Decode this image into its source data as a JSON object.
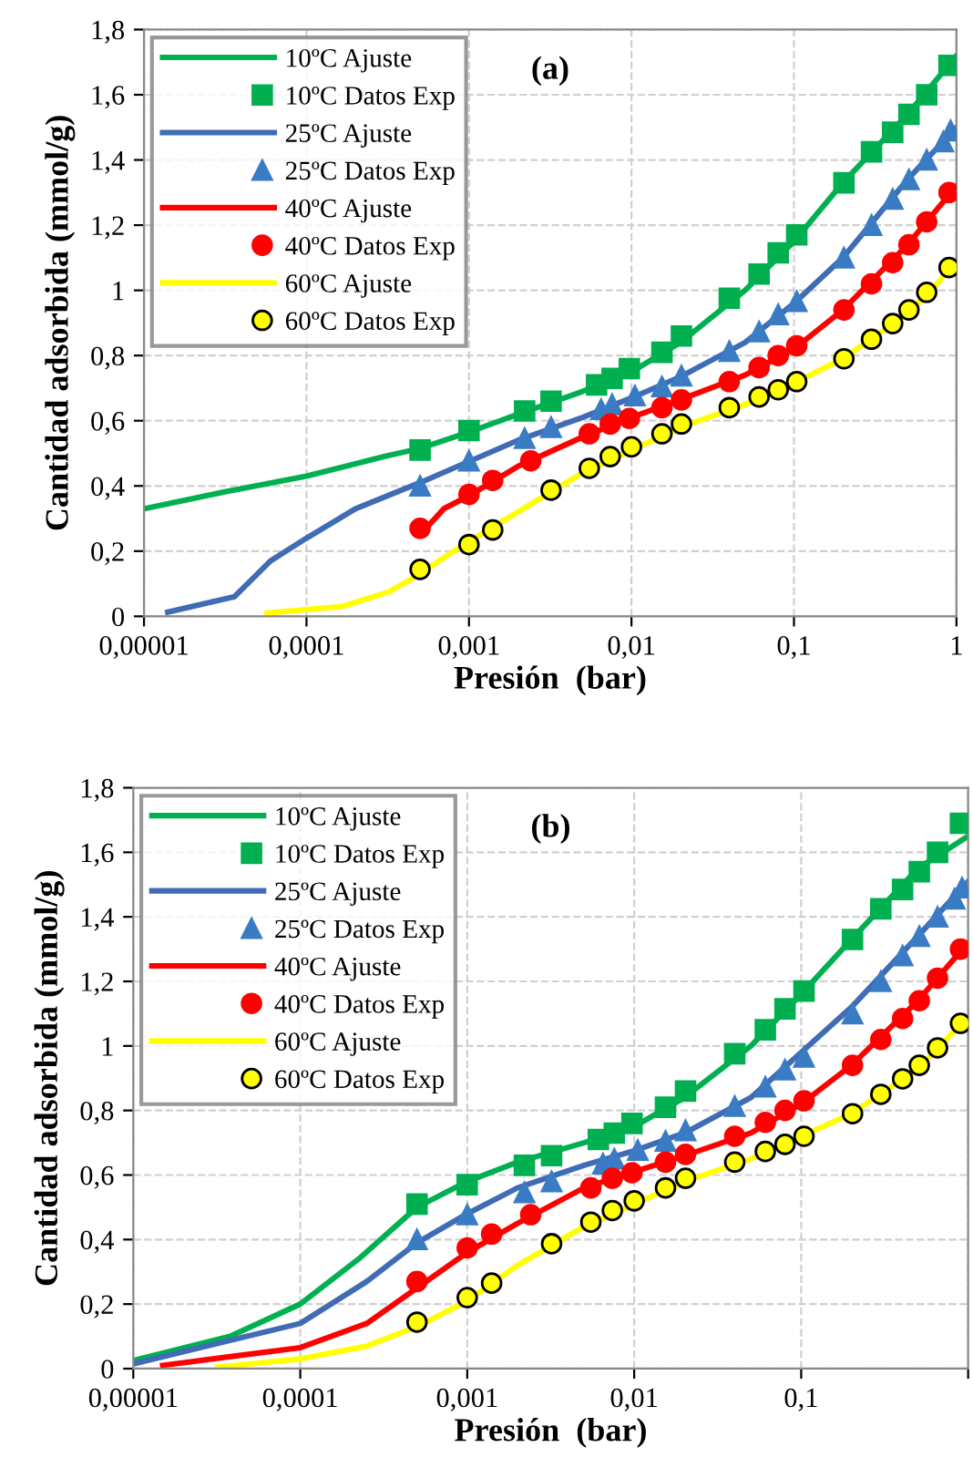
{
  "chart_data": [
    {
      "type": "line",
      "annotations": [
        "(a)"
      ],
      "xlabel": "Presión  (bar)",
      "ylabel": "Cantidad adsorbida (mmol/g)",
      "log": "x",
      "grid": true,
      "legend": "top left",
      "xlim": [
        1e-05,
        1
      ],
      "xticks": [
        {
          "value": 1e-05,
          "label": "0,00001"
        },
        {
          "value": 0.0001,
          "label": "0,0001"
        },
        {
          "value": 0.001,
          "label": "0,001"
        },
        {
          "value": 0.01,
          "label": "0,01"
        },
        {
          "value": 0.1,
          "label": "0,1"
        },
        1
      ],
      "ylim": [
        0,
        1.8
      ],
      "yticks": [
        0,
        {
          "value": 0.2,
          "label": "0,2"
        },
        {
          "value": 0.4,
          "label": "0,4"
        },
        {
          "value": 0.6,
          "label": "0,6"
        },
        {
          "value": 0.8,
          "label": "0,8"
        },
        1,
        {
          "value": 1.2,
          "label": "1,2"
        },
        {
          "value": 1.4,
          "label": "1,4"
        },
        {
          "value": 1.6,
          "label": "1,6"
        },
        {
          "value": 1.8,
          "label": "1,8"
        }
      ],
      "series": [
        {
          "name": "10ºC Ajuste",
          "type": "line",
          "color": "#00b050",
          "line_style": "solid",
          "x": [
            1e-05,
            3e-05,
            0.0001,
            0.0003,
            0.0005,
            0.001,
            0.002,
            0.005,
            0.01,
            0.02,
            0.05,
            0.1,
            0.2,
            0.5,
            1
          ],
          "values": [
            0.33,
            0.38,
            0.43,
            0.49,
            0.515,
            0.565,
            0.62,
            0.69,
            0.75,
            0.84,
            1.0,
            1.15,
            1.33,
            1.54,
            1.72
          ]
        },
        {
          "name": "10ºC Datos Exp",
          "type": "scatter",
          "color": "#00b050",
          "marker": "square",
          "x": [
            0.0005,
            0.001,
            0.0022,
            0.0032,
            0.0061,
            0.0076,
            0.0097,
            0.0154,
            0.0203,
            0.04,
            0.061,
            0.08,
            0.104,
            0.203,
            0.3,
            0.405,
            0.51,
            0.656,
            0.9
          ],
          "values": [
            0.51,
            0.57,
            0.63,
            0.66,
            0.71,
            0.73,
            0.76,
            0.81,
            0.86,
            0.976,
            1.05,
            1.115,
            1.17,
            1.33,
            1.425,
            1.485,
            1.54,
            1.6,
            1.69
          ]
        },
        {
          "name": "25ºC Ajuste",
          "type": "line",
          "color": "#3f6cb4",
          "line_style": "solid",
          "x": [
            1.4e-05,
            3.6e-05,
            6e-05,
            0.0001,
            0.0002,
            0.0005,
            0.001,
            0.002,
            0.005,
            0.01,
            0.02,
            0.05,
            0.1,
            0.2,
            0.5,
            1
          ],
          "values": [
            0.013,
            0.06,
            0.17,
            0.24,
            0.33,
            0.41,
            0.475,
            0.54,
            0.61,
            0.67,
            0.735,
            0.84,
            0.96,
            1.1,
            1.34,
            1.5
          ]
        },
        {
          "name": "25ºC Datos Exp",
          "type": "scatter",
          "color": "#3a7cc4",
          "marker": "triangle",
          "x": [
            0.0005,
            0.001,
            0.0022,
            0.0032,
            0.0065,
            0.0076,
            0.0105,
            0.0154,
            0.0203,
            0.04,
            0.061,
            0.08,
            0.104,
            0.203,
            0.3,
            0.405,
            0.51,
            0.656,
            0.83,
            0.92
          ],
          "values": [
            0.4,
            0.477,
            0.546,
            0.58,
            0.635,
            0.65,
            0.677,
            0.705,
            0.738,
            0.813,
            0.873,
            0.926,
            0.966,
            1.1,
            1.2,
            1.28,
            1.34,
            1.4,
            1.456,
            1.49
          ]
        },
        {
          "name": "40ºC Ajuste",
          "type": "line",
          "color": "#ff0000",
          "line_style": "solid",
          "x": [
            0.0005,
            0.0007,
            0.001,
            0.002,
            0.005,
            0.01,
            0.02,
            0.05,
            0.1,
            0.2,
            0.5,
            1
          ],
          "values": [
            0.25,
            0.33,
            0.37,
            0.46,
            0.55,
            0.61,
            0.665,
            0.74,
            0.82,
            0.94,
            1.14,
            1.32
          ]
        },
        {
          "name": "40ºC Datos Exp",
          "type": "scatter",
          "color": "#ff0000",
          "marker": "circle",
          "x": [
            0.0005,
            0.001,
            0.0014,
            0.0024,
            0.0055,
            0.0074,
            0.0097,
            0.0154,
            0.0203,
            0.04,
            0.061,
            0.08,
            0.104,
            0.203,
            0.3,
            0.405,
            0.51,
            0.656,
            0.9
          ],
          "values": [
            0.27,
            0.374,
            0.417,
            0.477,
            0.56,
            0.59,
            0.607,
            0.64,
            0.664,
            0.72,
            0.763,
            0.8,
            0.83,
            0.94,
            1.02,
            1.085,
            1.14,
            1.21,
            1.3
          ]
        },
        {
          "name": "60ºC Ajuste",
          "type": "line",
          "color": "#ffff00",
          "line_style": "solid",
          "x": [
            5.7e-05,
            0.000165,
            0.00032,
            0.0005,
            0.0007,
            0.001,
            0.002,
            0.005,
            0.01,
            0.02,
            0.05,
            0.1,
            0.2,
            0.5,
            0.7,
            1
          ],
          "values": [
            0.01,
            0.03,
            0.075,
            0.13,
            0.18,
            0.23,
            0.32,
            0.44,
            0.51,
            0.58,
            0.65,
            0.715,
            0.79,
            0.93,
            1.0,
            1.09
          ]
        },
        {
          "name": "60ºC Datos Exp",
          "type": "scatter",
          "color": "#ffff00",
          "marker": "circle",
          "x": [
            0.0005,
            0.001,
            0.0014,
            0.0032,
            0.0055,
            0.0074,
            0.01,
            0.0154,
            0.0203,
            0.04,
            0.061,
            0.08,
            0.104,
            0.203,
            0.3,
            0.405,
            0.51,
            0.656,
            0.9
          ],
          "values": [
            0.144,
            0.22,
            0.265,
            0.387,
            0.454,
            0.49,
            0.52,
            0.56,
            0.59,
            0.64,
            0.673,
            0.695,
            0.72,
            0.79,
            0.85,
            0.898,
            0.94,
            0.994,
            1.07
          ]
        }
      ]
    },
    {
      "type": "line",
      "annotations": [
        "(b)"
      ],
      "xlabel": "Presión  (bar)",
      "ylabel": "Cantidad adsorbida (mmol/g)",
      "log": "x",
      "grid": true,
      "legend": "top left",
      "xlim": [
        1e-05,
        1
      ],
      "xticks": [
        {
          "value": 1e-05,
          "label": "0,00001"
        },
        {
          "value": 0.0001,
          "label": "0,0001"
        },
        {
          "value": 0.001,
          "label": "0,001"
        },
        {
          "value": 0.01,
          "label": "0,01"
        },
        {
          "value": 0.1,
          "label": "0,1"
        },
        {
          "value": 1,
          "label": null
        }
      ],
      "ylim": [
        0,
        1.8
      ],
      "yticks": [
        0,
        {
          "value": 0.2,
          "label": "0,2"
        },
        {
          "value": 0.4,
          "label": "0,4"
        },
        {
          "value": 0.6,
          "label": "0,6"
        },
        {
          "value": 0.8,
          "label": "0,8"
        },
        1,
        {
          "value": 1.2,
          "label": "1,2"
        },
        {
          "value": 1.4,
          "label": "1,4"
        },
        {
          "value": 1.6,
          "label": "1,6"
        },
        {
          "value": 1.8,
          "label": "1,8"
        }
      ],
      "series": [
        {
          "name": "10ºC Ajuste",
          "type": "line",
          "color": "#00b050",
          "line_style": "solid",
          "x": [
            1e-05,
            3.8e-05,
            0.0001,
            0.00023,
            0.0005,
            0.001,
            0.002,
            0.005,
            0.01,
            0.02,
            0.05,
            0.1,
            0.2,
            0.5,
            1
          ],
          "values": [
            0.025,
            0.1,
            0.2,
            0.345,
            0.5,
            0.58,
            0.64,
            0.7,
            0.75,
            0.84,
            1.0,
            1.16,
            1.33,
            1.55,
            1.65
          ]
        },
        {
          "name": "10ºC Datos Exp",
          "type": "scatter",
          "color": "#00b050",
          "marker": "square",
          "x": [
            0.0005,
            0.001,
            0.0022,
            0.0032,
            0.0061,
            0.0076,
            0.0097,
            0.0154,
            0.0203,
            0.04,
            0.061,
            0.08,
            0.104,
            0.203,
            0.3,
            0.405,
            0.51,
            0.656,
            0.9
          ],
          "values": [
            0.51,
            0.57,
            0.63,
            0.66,
            0.71,
            0.73,
            0.76,
            0.81,
            0.86,
            0.976,
            1.05,
            1.115,
            1.17,
            1.33,
            1.425,
            1.485,
            1.54,
            1.6,
            1.69
          ]
        },
        {
          "name": "25ºC Ajuste",
          "type": "line",
          "color": "#3f6cb4",
          "line_style": "solid",
          "x": [
            1e-05,
            0.0001,
            0.00025,
            0.0005,
            0.001,
            0.002,
            0.005,
            0.01,
            0.02,
            0.05,
            0.1,
            0.2,
            0.5,
            1
          ],
          "values": [
            0.015,
            0.14,
            0.27,
            0.39,
            0.48,
            0.56,
            0.63,
            0.675,
            0.73,
            0.84,
            0.98,
            1.12,
            1.34,
            1.51
          ]
        },
        {
          "name": "25ºC Datos Exp",
          "type": "scatter",
          "color": "#3a7cc4",
          "marker": "triangle",
          "x": [
            0.0005,
            0.001,
            0.0022,
            0.0032,
            0.0065,
            0.0076,
            0.0105,
            0.0154,
            0.0203,
            0.04,
            0.061,
            0.08,
            0.104,
            0.203,
            0.3,
            0.405,
            0.51,
            0.656,
            0.83,
            0.92
          ],
          "values": [
            0.4,
            0.477,
            0.546,
            0.58,
            0.635,
            0.65,
            0.677,
            0.705,
            0.738,
            0.813,
            0.873,
            0.926,
            0.966,
            1.1,
            1.2,
            1.28,
            1.34,
            1.4,
            1.456,
            1.49
          ]
        },
        {
          "name": "40ºC Ajuste",
          "type": "line",
          "color": "#ff0000",
          "line_style": "solid",
          "x": [
            1.5e-05,
            0.0001,
            0.00025,
            0.0005,
            0.001,
            0.002,
            0.005,
            0.01,
            0.02,
            0.05,
            0.1,
            0.2,
            0.5,
            1
          ],
          "values": [
            0.01,
            0.065,
            0.14,
            0.25,
            0.36,
            0.45,
            0.56,
            0.61,
            0.66,
            0.73,
            0.82,
            0.94,
            1.14,
            1.32
          ]
        },
        {
          "name": "40ºC Datos Exp",
          "type": "scatter",
          "color": "#ff0000",
          "marker": "circle",
          "x": [
            0.0005,
            0.001,
            0.0014,
            0.0024,
            0.0055,
            0.0074,
            0.0097,
            0.0154,
            0.0203,
            0.04,
            0.061,
            0.08,
            0.104,
            0.203,
            0.3,
            0.405,
            0.51,
            0.656,
            0.9
          ],
          "values": [
            0.27,
            0.374,
            0.417,
            0.477,
            0.56,
            0.59,
            0.607,
            0.64,
            0.664,
            0.72,
            0.763,
            0.8,
            0.83,
            0.94,
            1.02,
            1.085,
            1.14,
            1.21,
            1.3
          ]
        },
        {
          "name": "60ºC Ajuste",
          "type": "line",
          "color": "#ffff00",
          "line_style": "solid",
          "x": [
            3.2e-05,
            0.0001,
            0.00025,
            0.0005,
            0.001,
            0.002,
            0.005,
            0.01,
            0.02,
            0.05,
            0.1,
            0.2,
            0.5,
            1
          ],
          "values": [
            0.005,
            0.03,
            0.07,
            0.13,
            0.21,
            0.32,
            0.44,
            0.51,
            0.58,
            0.65,
            0.72,
            0.79,
            0.93,
            1.09
          ]
        },
        {
          "name": "60ºC Datos Exp",
          "type": "scatter",
          "color": "#ffff00",
          "marker": "circle",
          "x": [
            0.0005,
            0.001,
            0.0014,
            0.0032,
            0.0055,
            0.0074,
            0.01,
            0.0154,
            0.0203,
            0.04,
            0.061,
            0.08,
            0.104,
            0.203,
            0.3,
            0.405,
            0.51,
            0.656,
            0.9
          ],
          "values": [
            0.144,
            0.22,
            0.265,
            0.387,
            0.454,
            0.49,
            0.52,
            0.56,
            0.59,
            0.64,
            0.673,
            0.695,
            0.72,
            0.79,
            0.85,
            0.898,
            0.94,
            0.994,
            1.07
          ]
        }
      ]
    }
  ]
}
